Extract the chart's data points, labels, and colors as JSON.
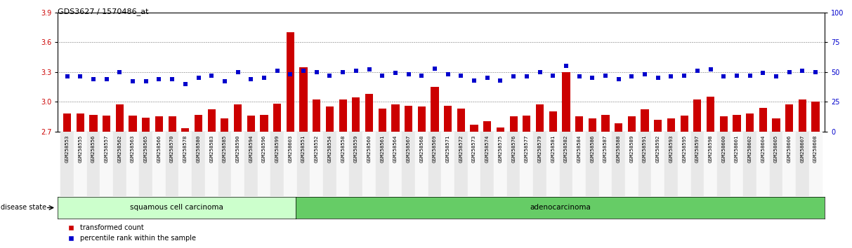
{
  "title": "GDS3627 / 1570486_at",
  "sample_ids": [
    "GSM258553",
    "GSM258555",
    "GSM258556",
    "GSM258557",
    "GSM258562",
    "GSM258563",
    "GSM258565",
    "GSM258566",
    "GSM258570",
    "GSM258578",
    "GSM258580",
    "GSM258583",
    "GSM258585",
    "GSM258590",
    "GSM258594",
    "GSM258596",
    "GSM258599",
    "GSM258603",
    "GSM258551",
    "GSM258552",
    "GSM258554",
    "GSM258558",
    "GSM258559",
    "GSM258560",
    "GSM258561",
    "GSM258564",
    "GSM258567",
    "GSM258568",
    "GSM258569",
    "GSM258571",
    "GSM258572",
    "GSM258573",
    "GSM258574",
    "GSM258575",
    "GSM258576",
    "GSM258577",
    "GSM258579",
    "GSM258581",
    "GSM258582",
    "GSM258584",
    "GSM258586",
    "GSM258587",
    "GSM258588",
    "GSM258589",
    "GSM258591",
    "GSM258592",
    "GSM258593",
    "GSM258595",
    "GSM258597",
    "GSM258598",
    "GSM258600",
    "GSM258601",
    "GSM258602",
    "GSM258604",
    "GSM258605",
    "GSM258606",
    "GSM258607",
    "GSM258608"
  ],
  "bar_values": [
    2.88,
    2.88,
    2.87,
    2.86,
    2.97,
    2.86,
    2.84,
    2.85,
    2.85,
    2.73,
    2.87,
    2.92,
    2.83,
    2.97,
    2.86,
    2.87,
    2.98,
    3.7,
    3.35,
    3.02,
    2.95,
    3.02,
    3.04,
    3.08,
    2.93,
    2.97,
    2.96,
    2.95,
    3.15,
    2.96,
    2.93,
    2.77,
    2.8,
    2.74,
    2.85,
    2.86,
    2.97,
    2.9,
    3.3,
    2.85,
    2.83,
    2.87,
    2.78,
    2.85,
    2.92,
    2.82,
    2.83,
    2.86,
    3.02,
    3.05,
    2.85,
    2.87,
    2.88,
    2.94,
    2.83,
    2.97,
    3.02,
    3.0
  ],
  "percentile_values": [
    46,
    46,
    44,
    44,
    50,
    42,
    42,
    44,
    44,
    40,
    45,
    47,
    42,
    50,
    44,
    45,
    51,
    48,
    51,
    50,
    47,
    50,
    51,
    52,
    47,
    49,
    48,
    47,
    53,
    48,
    47,
    43,
    45,
    43,
    46,
    46,
    50,
    47,
    55,
    46,
    45,
    47,
    44,
    46,
    48,
    45,
    46,
    47,
    51,
    52,
    46,
    47,
    47,
    49,
    46,
    50,
    51,
    50
  ],
  "group1_count": 18,
  "group1_label": "squamous cell carcinoma",
  "group2_label": "adenocarcinoma",
  "disease_state_label": "disease state",
  "ylim_left": [
    2.7,
    3.9
  ],
  "ylim_right": [
    0,
    100
  ],
  "yticks_left": [
    2.7,
    3.0,
    3.3,
    3.6,
    3.9
  ],
  "yticks_right": [
    0,
    25,
    50,
    75,
    100
  ],
  "bar_color": "#cc0000",
  "dot_color": "#0000cc",
  "group1_bg": "#ccffcc",
  "group2_bg": "#66cc66",
  "legend_items": [
    "transformed count",
    "percentile rank within the sample"
  ]
}
